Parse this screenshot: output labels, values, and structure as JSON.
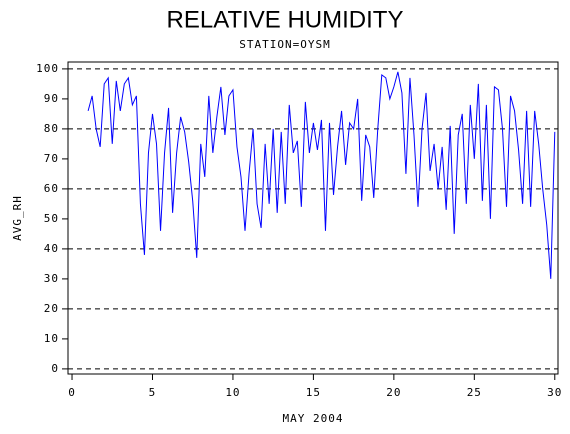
{
  "chart_data": {
    "type": "line",
    "title": "RELATIVE HUMIDITY",
    "subtitle": "STATION=OYSM",
    "x_label": "MAY 2004",
    "y_label": "AVG_RH",
    "xlim": [
      -0.25,
      30.2
    ],
    "ylim": [
      -1.7,
      102.3
    ],
    "xticks": [
      0,
      5,
      10,
      15,
      20,
      25,
      30
    ],
    "yticks": [
      0,
      10,
      20,
      30,
      40,
      50,
      60,
      70,
      80,
      90,
      100
    ],
    "reference_lines": [
      0,
      20,
      40,
      60,
      80,
      100
    ],
    "series": [
      {
        "name": "AVG_RH",
        "color": "#0000ff",
        "x": [
          1,
          1.25,
          1.5,
          1.75,
          2,
          2.25,
          2.5,
          2.75,
          3,
          3.25,
          3.5,
          3.75,
          4,
          4.25,
          4.5,
          4.75,
          5,
          5.25,
          5.5,
          5.75,
          6,
          6.25,
          6.5,
          6.75,
          7,
          7.25,
          7.5,
          7.75,
          8,
          8.25,
          8.5,
          8.75,
          9,
          9.25,
          9.5,
          9.75,
          10,
          10.25,
          10.5,
          10.75,
          11,
          11.25,
          11.5,
          11.75,
          12,
          12.25,
          12.5,
          12.75,
          13,
          13.25,
          13.5,
          13.75,
          14,
          14.25,
          14.5,
          14.75,
          15,
          15.25,
          15.5,
          15.75,
          16,
          16.25,
          16.5,
          16.75,
          17,
          17.25,
          17.5,
          17.75,
          18,
          18.25,
          18.5,
          18.75,
          19,
          19.25,
          19.5,
          19.75,
          20,
          20.25,
          20.5,
          20.75,
          21,
          21.25,
          21.5,
          21.75,
          22,
          22.25,
          22.5,
          22.75,
          23,
          23.25,
          23.5,
          23.75,
          24,
          24.25,
          24.5,
          24.75,
          25,
          25.25,
          25.5,
          25.75,
          26,
          26.25,
          26.5,
          26.75,
          27,
          27.25,
          27.5,
          27.75,
          28,
          28.25,
          28.5,
          28.75,
          29,
          29.25,
          29.5,
          29.75,
          30
        ],
        "values": [
          86,
          91,
          80,
          74,
          95,
          97,
          75,
          96,
          86,
          95,
          97,
          88,
          91,
          55,
          38,
          72,
          85,
          75,
          46,
          72,
          87,
          52,
          72,
          84,
          79,
          69,
          56,
          37,
          75,
          64,
          91,
          72,
          84,
          94,
          78,
          91,
          93,
          74,
          64,
          46,
          65,
          80,
          55,
          47,
          75,
          55,
          80,
          52,
          79,
          55,
          88,
          72,
          76,
          54,
          89,
          72,
          82,
          73,
          83,
          46,
          82,
          58,
          74,
          86,
          68,
          82,
          80,
          90,
          56,
          78,
          74,
          57,
          80,
          98,
          97,
          90,
          94,
          99,
          92,
          65,
          97,
          78,
          54,
          80,
          92,
          66,
          75,
          60,
          74,
          53,
          81,
          45,
          78,
          85,
          55,
          88,
          70,
          95,
          56,
          88,
          50,
          94,
          93,
          80,
          54,
          91,
          86,
          73,
          55,
          86,
          54,
          86,
          75,
          60,
          48,
          30,
          79
        ]
      }
    ]
  }
}
